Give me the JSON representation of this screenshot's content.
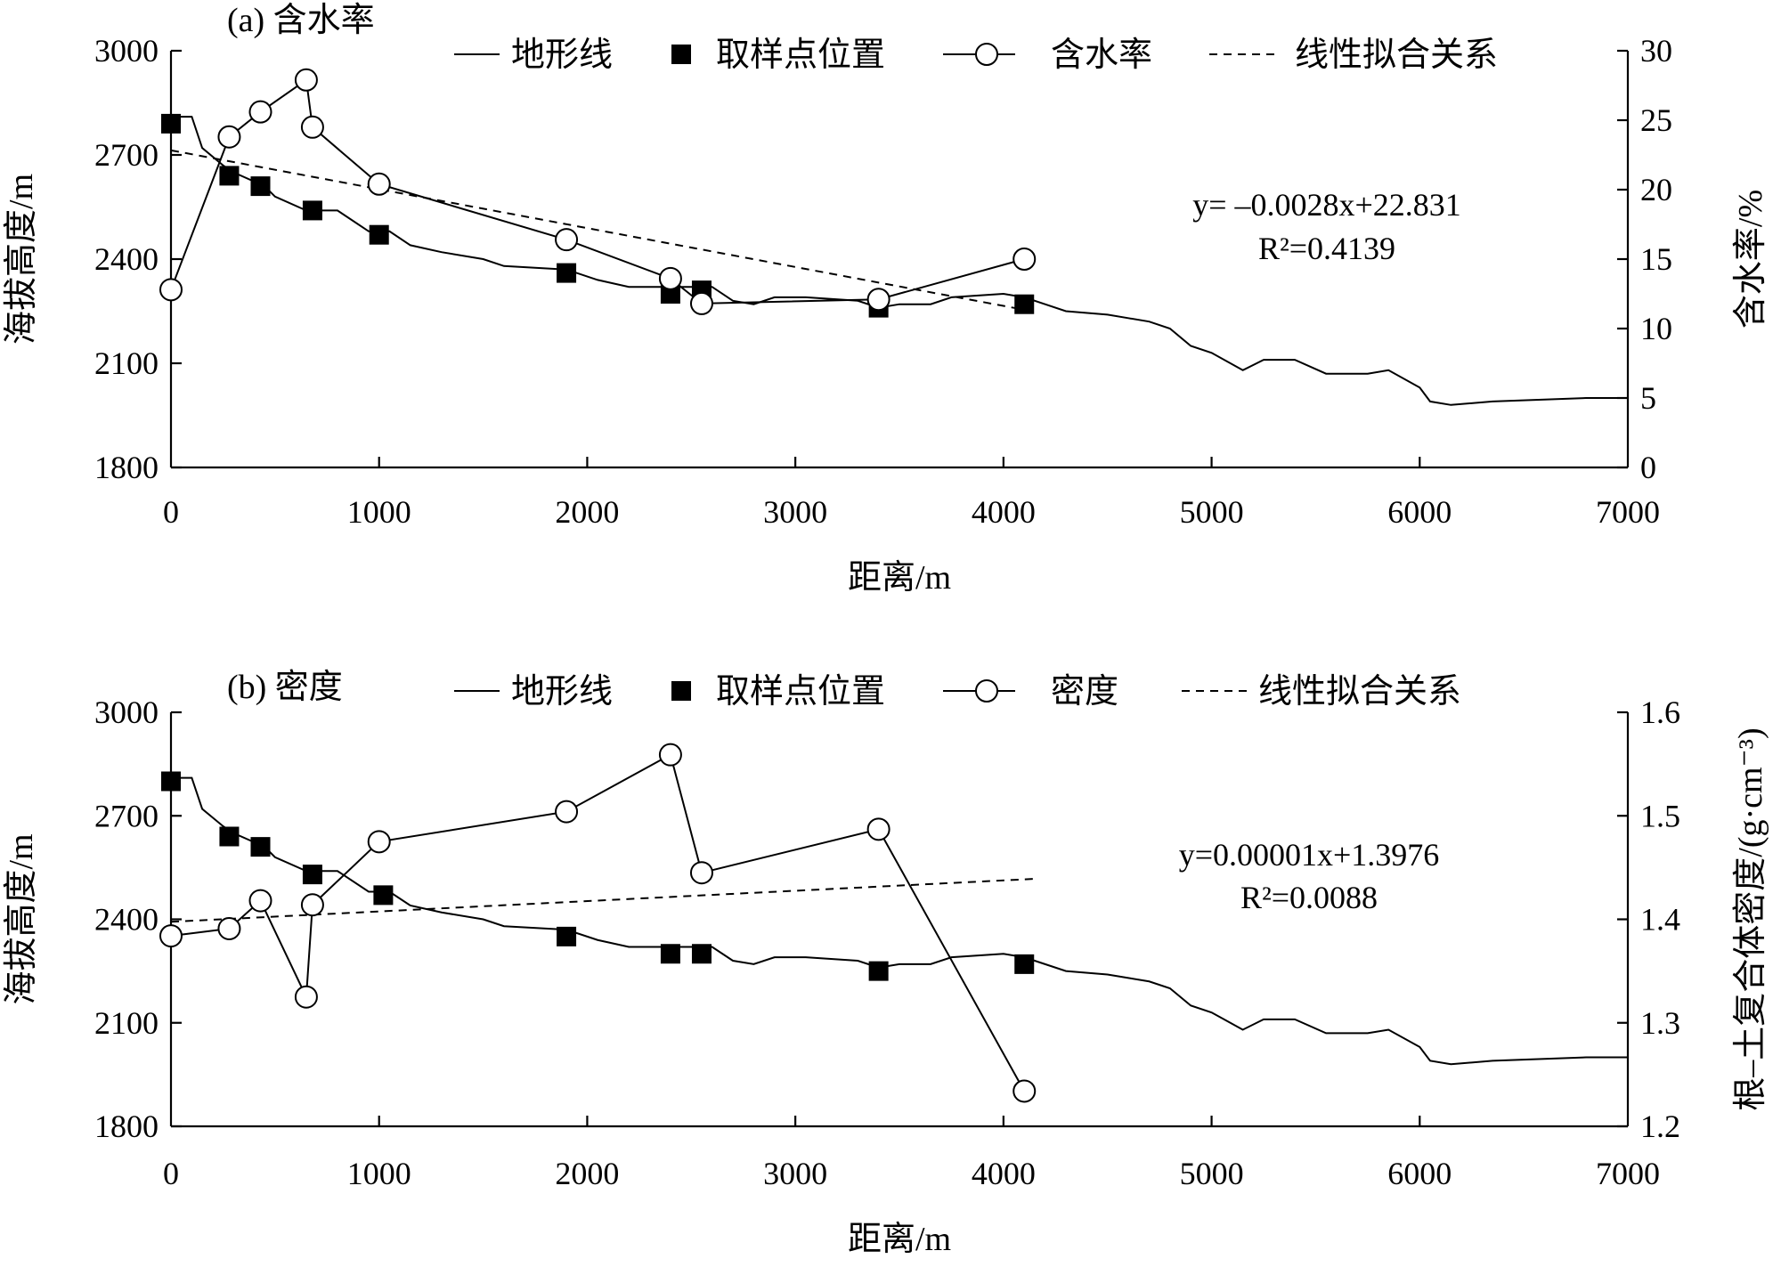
{
  "chart_data": [
    {
      "type": "line",
      "title": "(a) 含水率",
      "xlabel": "距离/m",
      "ylabel": "海拔高度/m",
      "y2label": "含水率/%",
      "xlim": [
        0,
        7000
      ],
      "ylim": [
        1800,
        3000
      ],
      "y2lim": [
        0,
        30
      ],
      "xticks": [
        "0",
        "1000",
        "2000",
        "3000",
        "4000",
        "5000",
        "6000",
        "7000"
      ],
      "yticks": [
        "1800",
        "2100",
        "2400",
        "2700",
        "3000"
      ],
      "y2ticks": [
        "0",
        "5",
        "10",
        "15",
        "20",
        "25",
        "30"
      ],
      "legend": [
        "地形线",
        "取样点位置",
        "含水率",
        "线性拟合关系"
      ],
      "legend_placement": "top",
      "equation": "y= –0.0028x+22.831",
      "r2": "R²=0.4139",
      "fit": {
        "slope": -0.0028,
        "intercept": 22.831,
        "x_range": [
          0,
          4150
        ]
      },
      "terrain": [
        [
          0,
          2810
        ],
        [
          100,
          2810
        ],
        [
          150,
          2720
        ],
        [
          250,
          2670
        ],
        [
          300,
          2650
        ],
        [
          450,
          2610
        ],
        [
          500,
          2580
        ],
        [
          650,
          2540
        ],
        [
          800,
          2540
        ],
        [
          950,
          2480
        ],
        [
          1050,
          2480
        ],
        [
          1150,
          2440
        ],
        [
          1300,
          2420
        ],
        [
          1500,
          2400
        ],
        [
          1600,
          2380
        ],
        [
          1900,
          2370
        ],
        [
          2050,
          2340
        ],
        [
          2200,
          2320
        ],
        [
          2600,
          2320
        ],
        [
          2700,
          2280
        ],
        [
          2800,
          2270
        ],
        [
          2900,
          2290
        ],
        [
          3050,
          2290
        ],
        [
          3300,
          2280
        ],
        [
          3400,
          2260
        ],
        [
          3500,
          2270
        ],
        [
          3650,
          2270
        ],
        [
          3750,
          2290
        ],
        [
          4000,
          2300
        ],
        [
          4100,
          2290
        ],
        [
          4200,
          2270
        ],
        [
          4300,
          2250
        ],
        [
          4500,
          2240
        ],
        [
          4600,
          2230
        ],
        [
          4700,
          2220
        ],
        [
          4800,
          2200
        ],
        [
          4900,
          2150
        ],
        [
          5000,
          2130
        ],
        [
          5150,
          2080
        ],
        [
          5250,
          2110
        ],
        [
          5400,
          2110
        ],
        [
          5550,
          2070
        ],
        [
          5750,
          2070
        ],
        [
          5850,
          2080
        ],
        [
          6000,
          2030
        ],
        [
          6050,
          1990
        ],
        [
          6150,
          1980
        ],
        [
          6350,
          1990
        ],
        [
          6800,
          2000
        ],
        [
          7000,
          2000
        ]
      ],
      "samples": [
        [
          0,
          2790
        ],
        [
          280,
          2640
        ],
        [
          430,
          2610
        ],
        [
          680,
          2540
        ],
        [
          1000,
          2470
        ],
        [
          1900,
          2360
        ],
        [
          2400,
          2300
        ],
        [
          2550,
          2310
        ],
        [
          3400,
          2260
        ],
        [
          4100,
          2270
        ]
      ],
      "series": [
        {
          "name": "含水率",
          "x": [
            0,
            280,
            430,
            650,
            680,
            1000,
            1900,
            2400,
            2550,
            3400,
            4100
          ],
          "values": [
            12.8,
            23.8,
            25.6,
            27.9,
            24.5,
            20.4,
            16.4,
            13.6,
            11.8,
            12.1,
            15.0
          ]
        }
      ]
    },
    {
      "type": "line",
      "title": "(b) 密度",
      "xlabel": "距离/m",
      "ylabel": "海拔高度/m",
      "y2label": "根–土复合体密度/(g·cm⁻³)",
      "xlim": [
        0,
        7000
      ],
      "ylim": [
        1800,
        3000
      ],
      "y2lim": [
        1.2,
        1.6
      ],
      "xticks": [
        "0",
        "1000",
        "2000",
        "3000",
        "4000",
        "5000",
        "6000",
        "7000"
      ],
      "yticks": [
        "1800",
        "2100",
        "2400",
        "2700",
        "3000"
      ],
      "y2ticks": [
        "1.2",
        "1.3",
        "1.4",
        "1.5",
        "1.6"
      ],
      "legend": [
        "地形线",
        "取样点位置",
        "密度",
        "线性拟合关系"
      ],
      "legend_placement": "top",
      "equation": "y=0.00001x+1.3976",
      "r2": "R²=0.0088",
      "fit": {
        "slope": 1e-05,
        "intercept": 1.3976,
        "x_range": [
          0,
          4150
        ]
      },
      "terrain": [
        [
          0,
          2810
        ],
        [
          100,
          2810
        ],
        [
          150,
          2720
        ],
        [
          250,
          2670
        ],
        [
          300,
          2650
        ],
        [
          450,
          2610
        ],
        [
          500,
          2580
        ],
        [
          650,
          2540
        ],
        [
          800,
          2540
        ],
        [
          950,
          2480
        ],
        [
          1050,
          2480
        ],
        [
          1150,
          2440
        ],
        [
          1300,
          2420
        ],
        [
          1500,
          2400
        ],
        [
          1600,
          2380
        ],
        [
          1900,
          2370
        ],
        [
          2050,
          2340
        ],
        [
          2200,
          2320
        ],
        [
          2600,
          2320
        ],
        [
          2700,
          2280
        ],
        [
          2800,
          2270
        ],
        [
          2900,
          2290
        ],
        [
          3050,
          2290
        ],
        [
          3300,
          2280
        ],
        [
          3400,
          2260
        ],
        [
          3500,
          2270
        ],
        [
          3650,
          2270
        ],
        [
          3750,
          2290
        ],
        [
          4000,
          2300
        ],
        [
          4100,
          2290
        ],
        [
          4200,
          2270
        ],
        [
          4300,
          2250
        ],
        [
          4500,
          2240
        ],
        [
          4600,
          2230
        ],
        [
          4700,
          2220
        ],
        [
          4800,
          2200
        ],
        [
          4900,
          2150
        ],
        [
          5000,
          2130
        ],
        [
          5150,
          2080
        ],
        [
          5250,
          2110
        ],
        [
          5400,
          2110
        ],
        [
          5550,
          2070
        ],
        [
          5750,
          2070
        ],
        [
          5850,
          2080
        ],
        [
          6000,
          2030
        ],
        [
          6050,
          1990
        ],
        [
          6150,
          1980
        ],
        [
          6350,
          1990
        ],
        [
          6800,
          2000
        ],
        [
          7000,
          2000
        ]
      ],
      "samples": [
        [
          0,
          2800
        ],
        [
          280,
          2640
        ],
        [
          430,
          2610
        ],
        [
          680,
          2530
        ],
        [
          1020,
          2470
        ],
        [
          1900,
          2350
        ],
        [
          2400,
          2300
        ],
        [
          2550,
          2300
        ],
        [
          3400,
          2250
        ],
        [
          4100,
          2270
        ]
      ],
      "series": [
        {
          "name": "密度",
          "x": [
            0,
            280,
            430,
            650,
            680,
            1000,
            1900,
            2400,
            2550,
            3400,
            4100
          ],
          "values": [
            1.384,
            1.391,
            1.418,
            1.325,
            1.414,
            1.475,
            1.504,
            1.559,
            1.445,
            1.487,
            1.234
          ]
        }
      ]
    }
  ]
}
